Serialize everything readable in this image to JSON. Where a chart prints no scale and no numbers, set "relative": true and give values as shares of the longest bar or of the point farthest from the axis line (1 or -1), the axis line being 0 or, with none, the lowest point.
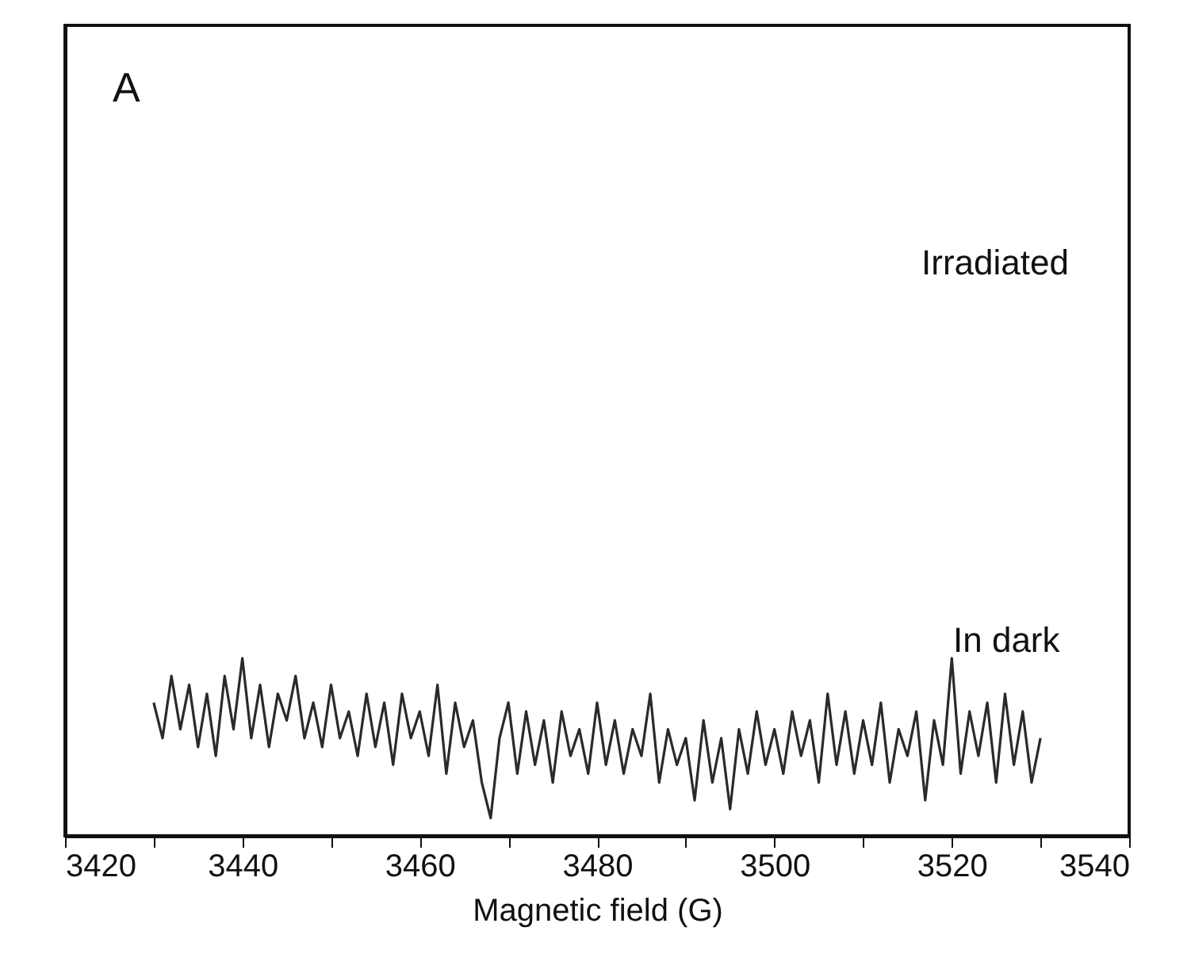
{
  "chart_data": {
    "type": "line",
    "relative": true,
    "xlabel": "Magnetic field (G)",
    "x": [
      3430,
      3431,
      3432,
      3433,
      3434,
      3435,
      3436,
      3437,
      3438,
      3439,
      3440,
      3441,
      3442,
      3443,
      3444,
      3445,
      3446,
      3447,
      3448,
      3449,
      3450,
      3451,
      3452,
      3453,
      3454,
      3455,
      3456,
      3457,
      3458,
      3459,
      3460,
      3461,
      3462,
      3463,
      3464,
      3465,
      3466,
      3467,
      3468,
      3469,
      3470,
      3471,
      3472,
      3473,
      3474,
      3475,
      3476,
      3477,
      3478,
      3479,
      3480,
      3481,
      3482,
      3483,
      3484,
      3485,
      3486,
      3487,
      3488,
      3489,
      3490,
      3491,
      3492,
      3493,
      3494,
      3495,
      3496,
      3497,
      3498,
      3499,
      3500,
      3501,
      3502,
      3503,
      3504,
      3505,
      3506,
      3507,
      3508,
      3509,
      3510,
      3511,
      3512,
      3513,
      3514,
      3515,
      3516,
      3517,
      3518,
      3519,
      3520,
      3521,
      3522,
      3523,
      3524,
      3525,
      3526,
      3527,
      3528,
      3529,
      3530
    ],
    "series": [
      {
        "color": "#2a2a2a",
        "values": [
          0.75,
          0.55,
          0.9,
          0.6,
          0.85,
          0.5,
          0.8,
          0.45,
          0.9,
          0.6,
          1,
          0.55,
          0.85,
          0.5,
          0.8,
          0.65,
          0.9,
          0.55,
          0.75,
          0.5,
          0.85,
          0.55,
          0.7,
          0.45,
          0.8,
          0.5,
          0.75,
          0.4,
          0.8,
          0.55,
          0.7,
          0.45,
          0.85,
          0.35,
          0.75,
          0.5,
          0.65,
          0.3,
          0.1,
          0.55,
          0.75,
          0.35,
          0.7,
          0.4,
          0.65,
          0.3,
          0.7,
          0.45,
          0.6,
          0.35,
          0.75,
          0.4,
          0.65,
          0.35,
          0.6,
          0.45,
          0.8,
          0.3,
          0.6,
          0.4,
          0.55,
          0.2,
          0.65,
          0.3,
          0.55,
          0.15,
          0.6,
          0.35,
          0.7,
          0.4,
          0.6,
          0.35,
          0.7,
          0.45,
          0.65,
          0.3,
          0.8,
          0.4,
          0.7,
          0.35,
          0.65,
          0.4,
          0.75,
          0.3,
          0.6,
          0.45,
          0.7,
          0.2,
          0.65,
          0.4,
          1,
          0.35,
          0.7,
          0.45,
          0.75,
          0.3,
          0.8,
          0.4,
          0.7,
          0.3,
          0.55
        ]
      }
    ],
    "xlim": [
      3420,
      3540
    ],
    "xticks": [
      3420,
      {
        "value": 3430,
        "label": null
      },
      3440,
      {
        "value": 3450,
        "label": null
      },
      3460,
      {
        "value": 3470,
        "label": null
      },
      3480,
      {
        "value": 3490,
        "label": null
      },
      3500,
      {
        "value": 3510,
        "label": null
      },
      3520,
      {
        "value": 3530,
        "label": null
      },
      3540
    ],
    "tick_labels": "x",
    "grid": false,
    "line_style": "solid",
    "annotations": [
      "A",
      "Irradiated",
      "In dark"
    ]
  }
}
